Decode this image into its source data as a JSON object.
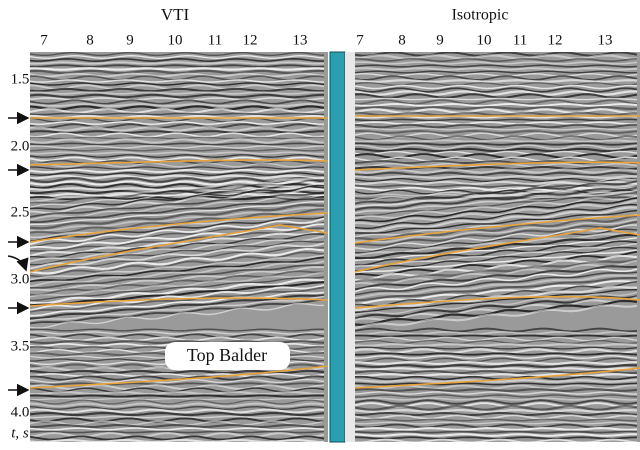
{
  "panels": [
    {
      "title": "VTI",
      "x_tick_labels": [
        "7",
        "8",
        "9",
        "10",
        "11",
        "12",
        "13"
      ]
    },
    {
      "title": "Isotropic",
      "x_tick_labels": [
        "7",
        "8",
        "9",
        "10",
        "11",
        "12",
        "13"
      ]
    }
  ],
  "y_tick_labels": [
    "1.5",
    "2.0",
    "2.5",
    "3.0",
    "3.5",
    "4.0"
  ],
  "y_axis_label": "t, s",
  "annotation": "Top Balder"
}
